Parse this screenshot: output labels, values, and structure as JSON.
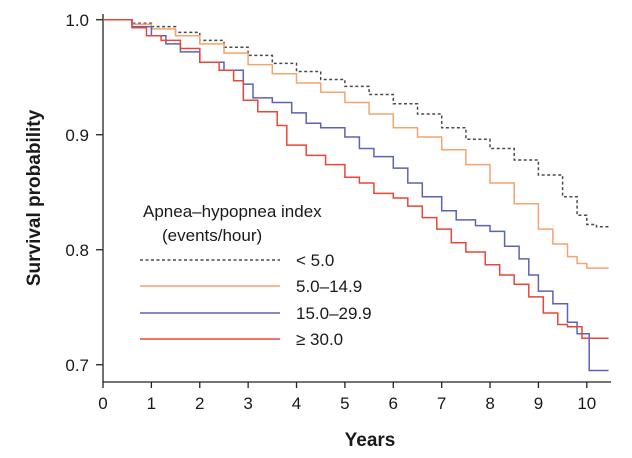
{
  "chart_data": {
    "type": "line",
    "title": "",
    "xlabel": "Years",
    "ylabel": "Survival probability",
    "xlim": [
      0,
      10.5
    ],
    "ylim": [
      0.685,
      1.005
    ],
    "x_ticks": [
      "0",
      "1",
      "2",
      "3",
      "4",
      "5",
      "6",
      "7",
      "8",
      "9",
      "10"
    ],
    "y_ticks": [
      "0.7",
      "0.8",
      "0.9",
      "1.0"
    ],
    "grid": false,
    "legend": {
      "title_line1": "Apnea–hypopnea index",
      "title_line2": "(events/hour)",
      "placement": "center-left"
    },
    "series": [
      {
        "name": "< 5.0",
        "color": "#4a4a4a",
        "style": "dashed",
        "points": [
          [
            0,
            1.0
          ],
          [
            0.35,
            1.0
          ],
          [
            0.6,
            0.997
          ],
          [
            1,
            0.994
          ],
          [
            1.5,
            0.989
          ],
          [
            2,
            0.982
          ],
          [
            2.5,
            0.976
          ],
          [
            3,
            0.969
          ],
          [
            3.5,
            0.962
          ],
          [
            4,
            0.955
          ],
          [
            4.5,
            0.948
          ],
          [
            5,
            0.942
          ],
          [
            5.5,
            0.935
          ],
          [
            6,
            0.927
          ],
          [
            6.5,
            0.918
          ],
          [
            7,
            0.906
          ],
          [
            7.5,
            0.896
          ],
          [
            8,
            0.888
          ],
          [
            8.5,
            0.878
          ],
          [
            9,
            0.865
          ],
          [
            9.5,
            0.846
          ],
          [
            9.8,
            0.83
          ],
          [
            10,
            0.822
          ],
          [
            10.2,
            0.82
          ],
          [
            10.45,
            0.82
          ]
        ]
      },
      {
        "name": "5.0–14.9",
        "color": "#f4a46e",
        "style": "solid",
        "points": [
          [
            0,
            1.0
          ],
          [
            0.35,
            1.0
          ],
          [
            0.6,
            0.996
          ],
          [
            1,
            0.992
          ],
          [
            1.5,
            0.986
          ],
          [
            2,
            0.979
          ],
          [
            2.5,
            0.971
          ],
          [
            3,
            0.961
          ],
          [
            3.5,
            0.953
          ],
          [
            4,
            0.945
          ],
          [
            4.5,
            0.937
          ],
          [
            5,
            0.928
          ],
          [
            5.5,
            0.918
          ],
          [
            6,
            0.906
          ],
          [
            6.5,
            0.898
          ],
          [
            7,
            0.887
          ],
          [
            7.5,
            0.874
          ],
          [
            8,
            0.858
          ],
          [
            8.5,
            0.84
          ],
          [
            9,
            0.818
          ],
          [
            9.3,
            0.805
          ],
          [
            9.6,
            0.794
          ],
          [
            9.8,
            0.788
          ],
          [
            10,
            0.784
          ],
          [
            10.45,
            0.784
          ]
        ]
      },
      {
        "name": "15.0–29.9",
        "color": "#5b63b5",
        "style": "solid",
        "points": [
          [
            0,
            1.0
          ],
          [
            0.35,
            1.0
          ],
          [
            0.6,
            0.994
          ],
          [
            1,
            0.986
          ],
          [
            1.3,
            0.979
          ],
          [
            1.6,
            0.972
          ],
          [
            2,
            0.963
          ],
          [
            2.5,
            0.956
          ],
          [
            2.9,
            0.944
          ],
          [
            3.1,
            0.932
          ],
          [
            3.5,
            0.928
          ],
          [
            3.9,
            0.919
          ],
          [
            4.2,
            0.91
          ],
          [
            4.5,
            0.906
          ],
          [
            5,
            0.898
          ],
          [
            5.3,
            0.888
          ],
          [
            5.6,
            0.881
          ],
          [
            6,
            0.871
          ],
          [
            6.3,
            0.858
          ],
          [
            6.6,
            0.846
          ],
          [
            7,
            0.834
          ],
          [
            7.3,
            0.826
          ],
          [
            7.7,
            0.821
          ],
          [
            8,
            0.816
          ],
          [
            8.3,
            0.803
          ],
          [
            8.6,
            0.792
          ],
          [
            8.8,
            0.778
          ],
          [
            9.0,
            0.764
          ],
          [
            9.3,
            0.753
          ],
          [
            9.6,
            0.737
          ],
          [
            9.8,
            0.727
          ],
          [
            10.0,
            0.727
          ],
          [
            10.05,
            0.695
          ],
          [
            10.45,
            0.695
          ]
        ]
      },
      {
        "name": "≥ 30.0",
        "color": "#e8463a",
        "style": "solid",
        "points": [
          [
            0,
            1.0
          ],
          [
            0.35,
            1.0
          ],
          [
            0.6,
            0.993
          ],
          [
            0.9,
            0.986
          ],
          [
            1.2,
            0.982
          ],
          [
            1.6,
            0.975
          ],
          [
            2,
            0.963
          ],
          [
            2.4,
            0.956
          ],
          [
            2.7,
            0.947
          ],
          [
            2.9,
            0.93
          ],
          [
            3.2,
            0.92
          ],
          [
            3.6,
            0.908
          ],
          [
            3.8,
            0.891
          ],
          [
            4.2,
            0.882
          ],
          [
            4.6,
            0.874
          ],
          [
            5,
            0.863
          ],
          [
            5.3,
            0.858
          ],
          [
            5.6,
            0.849
          ],
          [
            6,
            0.845
          ],
          [
            6.3,
            0.838
          ],
          [
            6.6,
            0.828
          ],
          [
            6.9,
            0.818
          ],
          [
            7.2,
            0.806
          ],
          [
            7.5,
            0.798
          ],
          [
            7.9,
            0.787
          ],
          [
            8.2,
            0.778
          ],
          [
            8.5,
            0.77
          ],
          [
            8.8,
            0.759
          ],
          [
            9.1,
            0.745
          ],
          [
            9.4,
            0.735
          ],
          [
            9.6,
            0.733
          ],
          [
            9.9,
            0.723
          ],
          [
            10.45,
            0.723
          ]
        ]
      }
    ]
  }
}
